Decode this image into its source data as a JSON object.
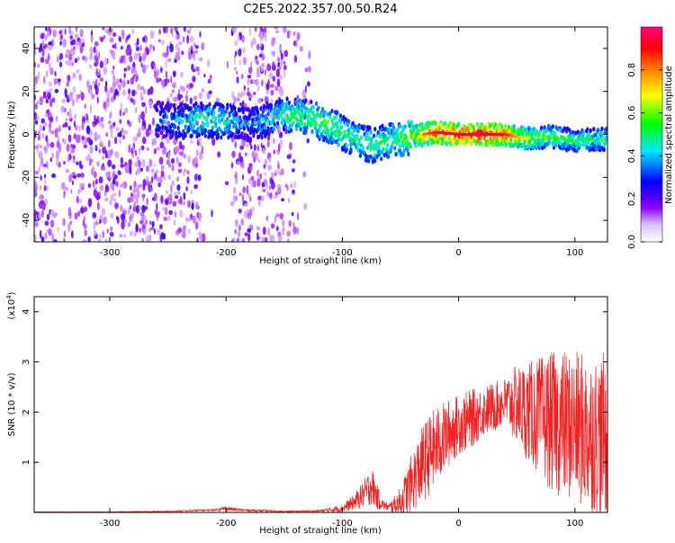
{
  "title": "C2E5.2022.357.00.50.R24",
  "chart_data": [
    {
      "type": "heatmap",
      "xlabel": "Height of straight line (km)",
      "ylabel": "Frequency (Hz)",
      "xlim": [
        -365,
        128
      ],
      "ylim": [
        -50,
        50
      ],
      "xticks": [
        -300,
        -200,
        -100,
        0,
        100
      ],
      "xtick_labels": [
        "-300",
        "-200",
        "-100",
        "0",
        "100"
      ],
      "yticks": [
        -40,
        -20,
        0,
        20,
        40
      ],
      "ytick_labels": [
        "-40",
        "-20",
        "0",
        "20",
        "40"
      ],
      "colorbar": {
        "label": "Normalized spectral amplitude",
        "range": [
          0,
          1
        ],
        "ticks": [
          0.0,
          0.2,
          0.4,
          0.6,
          0.8
        ],
        "tick_labels": [
          "0.0",
          "0.2",
          "0.4",
          "0.6",
          "0.8"
        ],
        "colormap": [
          "#ffffff",
          "#8a00ff",
          "#0000ff",
          "#00e5ff",
          "#00ff00",
          "#ffff00",
          "#ff8000",
          "#ff0000",
          "#ff0080"
        ]
      },
      "ridge": {
        "x": [
          -280,
          -240,
          -220,
          -200,
          -180,
          -150,
          -130,
          -110,
          -90,
          -75,
          -60,
          -40,
          -20,
          0,
          20,
          40,
          60,
          80,
          100,
          128
        ],
        "y": [
          8,
          6,
          7,
          6,
          5,
          9,
          8,
          4,
          -2,
          -5,
          -3,
          -1,
          1,
          0,
          0,
          0,
          -2,
          -1,
          -3,
          -2
        ],
        "amplitude": [
          0.25,
          0.35,
          0.45,
          0.4,
          0.3,
          0.45,
          0.5,
          0.5,
          0.45,
          0.45,
          0.45,
          0.6,
          0.8,
          0.85,
          0.9,
          0.8,
          0.55,
          0.5,
          0.45,
          0.45
        ]
      }
    },
    {
      "type": "line",
      "xlabel": "Height of straight line (km)",
      "ylabel": "SNR (10 * v/v)",
      "y_multiplier_label": "(x10",
      "y_multiplier_exp": "4",
      "xlim": [
        -365,
        128
      ],
      "ylim": [
        0,
        4.3
      ],
      "xticks": [
        -300,
        -200,
        -100,
        0,
        100
      ],
      "xtick_labels": [
        "-300",
        "-200",
        "-100",
        "0",
        "100"
      ],
      "yticks": [
        1,
        2,
        3,
        4
      ],
      "ytick_labels": [
        "1",
        "2",
        "3",
        "4"
      ],
      "color": "#ee2222",
      "series": [
        {
          "x": [
            -365,
            -300,
            -250,
            -210,
            -200,
            -190,
            -150,
            -120,
            -100,
            -90,
            -80,
            -75,
            -70,
            -65,
            -60,
            -50,
            -40,
            -30,
            -20,
            -10,
            0,
            10,
            20,
            30,
            40,
            50,
            60,
            70,
            80,
            90,
            100,
            110,
            120,
            128
          ],
          "mean": [
            0.01,
            0.01,
            0.02,
            0.05,
            0.08,
            0.05,
            0.02,
            0.03,
            0.08,
            0.2,
            0.4,
            0.55,
            0.3,
            0.15,
            0.1,
            0.2,
            0.6,
            1.0,
            1.3,
            1.55,
            1.75,
            1.85,
            2.0,
            2.1,
            2.2,
            2.15,
            2.0,
            1.9,
            1.8,
            1.75,
            1.7,
            1.6,
            1.55,
            1.5
          ],
          "spread": [
            0.005,
            0.005,
            0.01,
            0.02,
            0.05,
            0.03,
            0.01,
            0.02,
            0.08,
            0.15,
            0.3,
            0.4,
            0.25,
            0.1,
            0.08,
            0.3,
            0.6,
            0.8,
            0.8,
            0.7,
            0.6,
            0.6,
            0.5,
            0.5,
            0.5,
            0.8,
            1.0,
            1.2,
            1.4,
            1.5,
            1.5,
            1.6,
            1.6,
            1.7
          ]
        }
      ]
    }
  ]
}
